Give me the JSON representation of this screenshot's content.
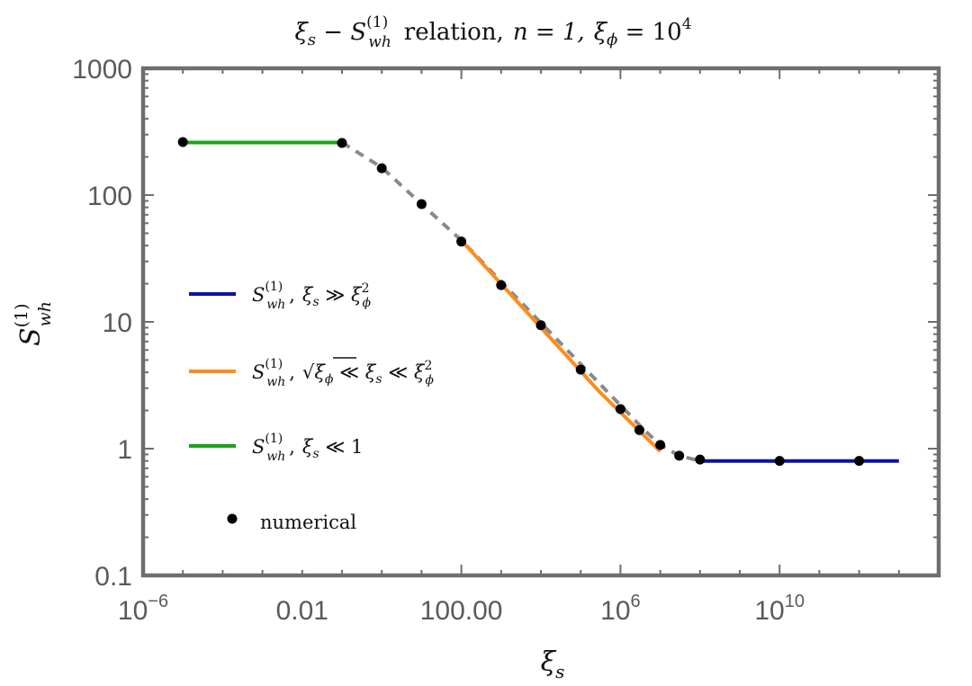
{
  "chart_data": {
    "type": "line",
    "title": {
      "xi": "ξ",
      "xi_sub": "s",
      "minus": " − ",
      "S": "S",
      "S_sup": "(1)",
      "S_sub": "wh",
      "text1": "relation,",
      "n_text": "n = 1,",
      "xi_phi": "ξ",
      "xi_phi_sub": "ϕ",
      "xi_phi_eq": " = 10",
      "xi_phi_exp": "4"
    },
    "xlabel": {
      "main": "ξ",
      "sub": "s"
    },
    "ylabel": {
      "main": "S",
      "sup": "(1)",
      "sub": "wh"
    },
    "x_scale": "log",
    "y_scale": "log",
    "xlim": [
      1e-06,
      100000000000000.0
    ],
    "ylim": [
      0.1,
      1000
    ],
    "grid": false,
    "legend_position": "left",
    "x_ticks": [
      {
        "value": 1e-06,
        "base": "10",
        "exp": "−6"
      },
      {
        "value": 0.01,
        "label": "0.01"
      },
      {
        "value": 100,
        "label": "100.00"
      },
      {
        "value": 1000000,
        "base": "10",
        "exp": "6"
      },
      {
        "value": 10000000000,
        "base": "10",
        "exp": "10"
      }
    ],
    "y_ticks": [
      {
        "value": 0.1,
        "label": "0.1"
      },
      {
        "value": 1,
        "label": "1"
      },
      {
        "value": 10,
        "label": "10"
      },
      {
        "value": 100,
        "label": "100"
      },
      {
        "value": 1000,
        "label": "1000"
      }
    ],
    "series": [
      {
        "key": "small",
        "color": "#1aa31a",
        "style": "solid",
        "points": [
          [
            1e-05,
            260
          ],
          [
            0.1,
            260
          ]
        ]
      },
      {
        "key": "intermediate",
        "color": "#ff8c1a",
        "style": "solid",
        "points": [
          [
            100,
            44
          ],
          [
            300000,
            2.8
          ],
          [
            10000000,
            0.95
          ]
        ]
      },
      {
        "key": "large",
        "color": "#0a14a0",
        "style": "solid",
        "points": [
          [
            100000000,
            0.8
          ],
          [
            10000000000000.0,
            0.8
          ]
        ]
      },
      {
        "key": "interpolation",
        "color": "#8a8a8a",
        "style": "dashed",
        "points": [
          [
            0.1,
            260
          ],
          [
            1,
            165
          ],
          [
            10,
            85
          ],
          [
            100,
            44
          ],
          [
            4000000,
            1.4
          ],
          [
            10000000,
            1.07
          ],
          [
            30000000,
            0.88
          ],
          [
            100000000,
            0.8
          ]
        ]
      },
      {
        "key": "numerical",
        "color": "#000000",
        "style": "markers",
        "points": [
          [
            1e-05,
            262
          ],
          [
            0.1,
            258
          ],
          [
            1,
            163
          ],
          [
            10,
            85
          ],
          [
            100,
            43
          ],
          [
            1000,
            19.5
          ],
          [
            10000,
            9.4
          ],
          [
            100000,
            4.2
          ],
          [
            1000000,
            2.05
          ],
          [
            3000000,
            1.4
          ],
          [
            10000000,
            1.07
          ],
          [
            30000000,
            0.88
          ],
          [
            100000000,
            0.82
          ],
          [
            10000000000,
            0.8
          ],
          [
            1000000000000.0,
            0.8
          ]
        ]
      }
    ],
    "legend": [
      {
        "type": "line",
        "color": "#0a14a0",
        "S": "S",
        "sup": "(1)",
        "sub": "wh",
        "cond": "ξ",
        "cond_sub": "s",
        "rel": " ≫ ",
        "rhs": "ξ",
        "rhs_sub": "ϕ",
        "rhs_sup": "2"
      },
      {
        "type": "line",
        "color": "#ff8c1a",
        "S": "S",
        "sup": "(1)",
        "sub": "wh",
        "sqrt_inner": "ξ",
        "sqrt_sub": "ϕ",
        "rel1": " ≪ ",
        "mid": "ξ",
        "mid_sub": "s",
        "rel2": " ≪ ",
        "rhs": "ξ",
        "rhs_sub": "ϕ",
        "rhs_sup": "2"
      },
      {
        "type": "line",
        "color": "#1aa31a",
        "S": "S",
        "sup": "(1)",
        "sub": "wh",
        "cond": "ξ",
        "cond_sub": "s",
        "rel": " ≪ ",
        "rhs": "1"
      },
      {
        "type": "marker",
        "color": "#000000",
        "label": "numerical"
      }
    ],
    "colors": {
      "frame": "#6e6e6e",
      "tick_text": "#5a5a5a"
    }
  }
}
